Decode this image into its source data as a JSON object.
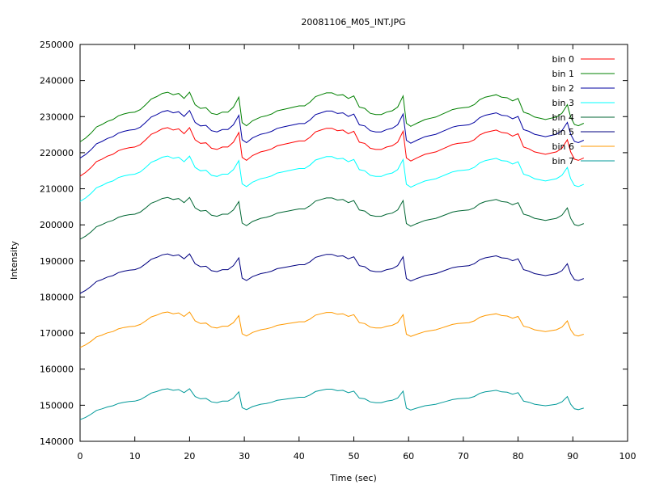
{
  "chart_data": {
    "type": "line",
    "title": "20081106_M05_INT.JPG",
    "xlabel": "Time (sec)",
    "ylabel": "Intensity",
    "xlim": [
      0,
      100
    ],
    "ylim": [
      140000,
      250000
    ],
    "xticks": [
      0,
      10,
      20,
      30,
      40,
      50,
      60,
      70,
      80,
      90,
      100
    ],
    "yticks": [
      140000,
      150000,
      160000,
      170000,
      180000,
      190000,
      200000,
      210000,
      220000,
      230000,
      240000,
      250000
    ],
    "grid": false,
    "legend_position": "top-right",
    "series": [
      {
        "name": "bin 0",
        "color": "#ff0000",
        "offset": 213500,
        "amp": 16800
      },
      {
        "name": "bin 1",
        "color": "#008000",
        "offset": 223000,
        "amp": 17200
      },
      {
        "name": "bin 2",
        "color": "#0000a0",
        "offset": 218500,
        "amp": 16500
      },
      {
        "name": "bin 3",
        "color": "#00ffff",
        "offset": 206500,
        "amp": 15700
      },
      {
        "name": "bin 4",
        "color": "#006633",
        "offset": 196000,
        "amp": 14500
      },
      {
        "name": "bin 5",
        "color": "#000080",
        "offset": 181000,
        "amp": 13700
      },
      {
        "name": "bin 6",
        "color": "#ff9900",
        "offset": 166000,
        "amp": 12300
      },
      {
        "name": "bin 7",
        "color": "#009999",
        "offset": 146000,
        "amp": 10700
      }
    ],
    "shape_profile": [
      [
        0,
        0.0
      ],
      [
        1,
        0.06
      ],
      [
        2,
        0.14
      ],
      [
        3,
        0.24
      ],
      [
        4,
        0.28
      ],
      [
        5,
        0.33
      ],
      [
        6,
        0.36
      ],
      [
        7,
        0.42
      ],
      [
        8,
        0.45
      ],
      [
        9,
        0.47
      ],
      [
        10,
        0.48
      ],
      [
        11,
        0.52
      ],
      [
        12,
        0.6
      ],
      [
        13,
        0.69
      ],
      [
        14,
        0.73
      ],
      [
        15,
        0.78
      ],
      [
        16,
        0.8
      ],
      [
        17,
        0.76
      ],
      [
        18,
        0.78
      ],
      [
        19,
        0.7
      ],
      [
        20,
        0.8
      ],
      [
        21,
        0.6
      ],
      [
        22,
        0.54
      ],
      [
        23,
        0.55
      ],
      [
        24,
        0.46
      ],
      [
        25,
        0.44
      ],
      [
        26,
        0.48
      ],
      [
        27,
        0.48
      ],
      [
        28,
        0.56
      ],
      [
        29,
        0.72
      ],
      [
        29.6,
        0.31
      ],
      [
        30.4,
        0.26
      ],
      [
        31.5,
        0.34
      ],
      [
        33,
        0.4
      ],
      [
        34,
        0.42
      ],
      [
        35,
        0.45
      ],
      [
        36,
        0.5
      ],
      [
        37,
        0.52
      ],
      [
        38,
        0.54
      ],
      [
        39,
        0.56
      ],
      [
        40,
        0.58
      ],
      [
        41,
        0.58
      ],
      [
        42,
        0.64
      ],
      [
        43,
        0.73
      ],
      [
        44,
        0.76
      ],
      [
        45,
        0.79
      ],
      [
        46,
        0.79
      ],
      [
        47,
        0.75
      ],
      [
        48,
        0.76
      ],
      [
        49,
        0.7
      ],
      [
        50,
        0.74
      ],
      [
        51,
        0.56
      ],
      [
        52,
        0.54
      ],
      [
        53,
        0.46
      ],
      [
        54,
        0.44
      ],
      [
        55,
        0.44
      ],
      [
        56,
        0.48
      ],
      [
        57,
        0.5
      ],
      [
        58,
        0.56
      ],
      [
        59,
        0.74
      ],
      [
        59.6,
        0.3
      ],
      [
        60.4,
        0.25
      ],
      [
        61.5,
        0.3
      ],
      [
        63,
        0.36
      ],
      [
        64,
        0.38
      ],
      [
        65,
        0.4
      ],
      [
        66,
        0.44
      ],
      [
        67,
        0.48
      ],
      [
        68,
        0.52
      ],
      [
        69,
        0.54
      ],
      [
        70,
        0.55
      ],
      [
        71,
        0.56
      ],
      [
        72,
        0.6
      ],
      [
        73,
        0.68
      ],
      [
        74,
        0.72
      ],
      [
        75,
        0.74
      ],
      [
        76,
        0.76
      ],
      [
        77,
        0.72
      ],
      [
        78,
        0.71
      ],
      [
        79,
        0.66
      ],
      [
        80,
        0.7
      ],
      [
        81,
        0.48
      ],
      [
        82,
        0.45
      ],
      [
        83,
        0.4
      ],
      [
        84,
        0.38
      ],
      [
        85,
        0.36
      ],
      [
        86,
        0.38
      ],
      [
        87,
        0.4
      ],
      [
        88,
        0.46
      ],
      [
        89,
        0.6
      ],
      [
        89.6,
        0.4
      ],
      [
        90.3,
        0.28
      ],
      [
        91,
        0.26
      ],
      [
        92,
        0.3
      ]
    ]
  }
}
